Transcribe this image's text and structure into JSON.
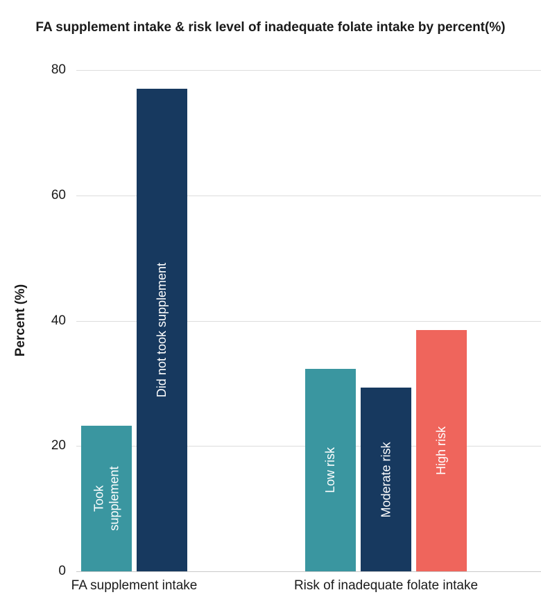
{
  "title": "FA supplement intake & risk level of inadequate folate intake by percent(%)",
  "palette": {
    "teal": "#3a96a0",
    "navy": "#17395f",
    "salmon": "#ef655c",
    "gridline": "#dcdcdc",
    "text": "#1a1a1a",
    "bar_label_text": "#ffffff"
  },
  "chart_data": {
    "type": "bar",
    "title": "FA supplement intake & risk level of inadequate folate intake by percent(%)",
    "xlabel": "",
    "ylabel": "Percent (%)",
    "ylim": [
      0,
      80
    ],
    "yticks": [
      0,
      20,
      40,
      60,
      80
    ],
    "grid": true,
    "legend_position": "none",
    "bar_labels_inside": true,
    "categories": [
      "FA supplement intake",
      "Risk of inadequate folate intake"
    ],
    "groups": [
      {
        "category": "FA supplement intake",
        "bars": [
          {
            "label": "Took\nsupplement",
            "value": 23.2,
            "color": "#3a96a0"
          },
          {
            "label": "Did not took supplement",
            "value": 77.0,
            "color": "#17395f"
          }
        ]
      },
      {
        "category": "Risk of inadequate folate intake",
        "bars": [
          {
            "label": "Low risk",
            "value": 32.3,
            "color": "#3a96a0"
          },
          {
            "label": "Moderate risk",
            "value": 29.3,
            "color": "#17395f"
          },
          {
            "label": "High risk",
            "value": 38.5,
            "color": "#ef655c"
          }
        ]
      }
    ]
  }
}
